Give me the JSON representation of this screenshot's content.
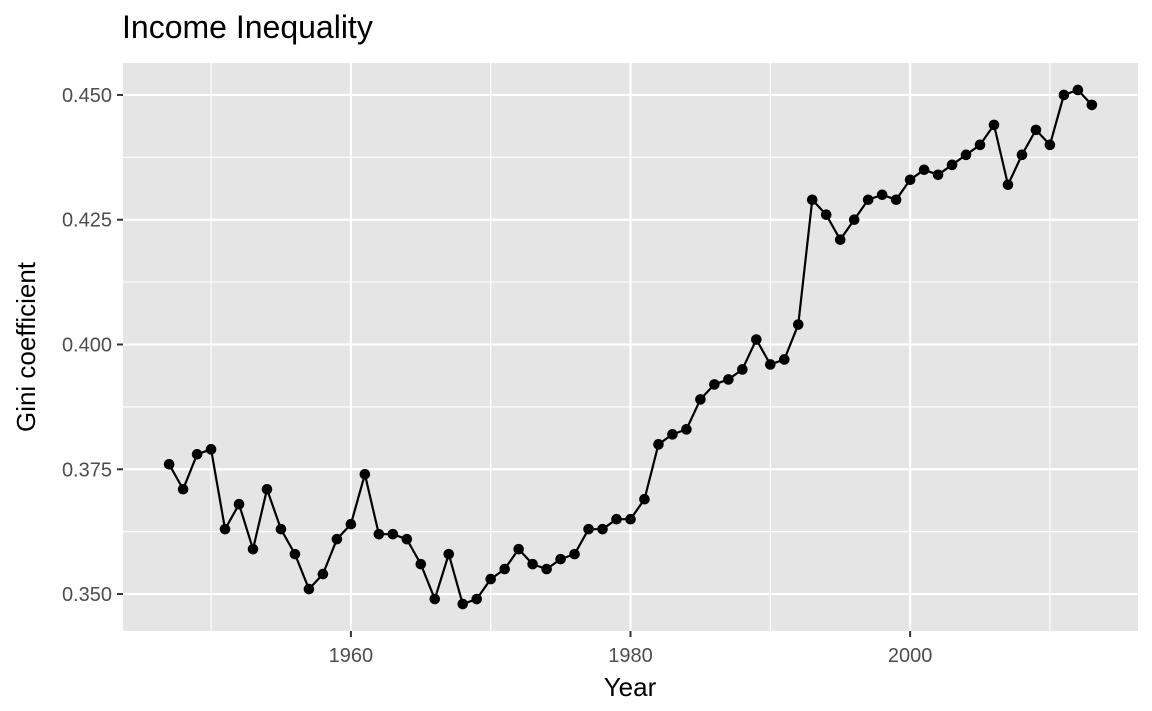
{
  "chart_data": {
    "type": "line",
    "title": "Income Inequality",
    "xlabel": "Year",
    "ylabel": "Gini coefficient",
    "xlim": [
      1943.7,
      2016.3
    ],
    "ylim": [
      0.3426,
      0.4564
    ],
    "x_ticks": [
      1960,
      1980,
      2000
    ],
    "x_tick_labels": [
      "1960",
      "1980",
      "2000"
    ],
    "x_minor_ticks": [
      1950,
      1970,
      1990,
      2010
    ],
    "y_ticks": [
      0.35,
      0.375,
      0.4,
      0.425,
      0.45
    ],
    "y_tick_labels": [
      "0.350",
      "0.375",
      "0.400",
      "0.425",
      "0.450"
    ],
    "y_minor_ticks": [
      0.3625,
      0.3875,
      0.4125,
      0.4375
    ],
    "grid": true,
    "legend": "none",
    "colors": {
      "panel": "#e5e5e5",
      "grid": "#ffffff",
      "line": "#000000",
      "point": "#000000"
    },
    "series": [
      {
        "x": [
          1947,
          1948,
          1949,
          1950,
          1951,
          1952,
          1953,
          1954,
          1955,
          1956,
          1957,
          1958,
          1959,
          1960,
          1961,
          1962,
          1963,
          1964,
          1965,
          1966,
          1967,
          1968,
          1969,
          1970,
          1971,
          1972,
          1973,
          1974,
          1975,
          1976,
          1977,
          1978,
          1979,
          1980,
          1981,
          1982,
          1983,
          1984,
          1985,
          1986,
          1987,
          1988,
          1989,
          1990,
          1991,
          1992,
          1993,
          1994,
          1995,
          1996,
          1997,
          1998,
          1999,
          2000,
          2001,
          2002,
          2003,
          2004,
          2005,
          2006,
          2007,
          2008,
          2009,
          2010,
          2011,
          2012,
          2013
        ],
        "y": [
          0.376,
          0.371,
          0.378,
          0.379,
          0.363,
          0.368,
          0.359,
          0.371,
          0.363,
          0.358,
          0.351,
          0.354,
          0.361,
          0.364,
          0.374,
          0.362,
          0.362,
          0.361,
          0.356,
          0.349,
          0.358,
          0.348,
          0.349,
          0.353,
          0.355,
          0.359,
          0.356,
          0.355,
          0.357,
          0.358,
          0.363,
          0.363,
          0.365,
          0.365,
          0.369,
          0.38,
          0.382,
          0.383,
          0.389,
          0.392,
          0.393,
          0.395,
          0.401,
          0.396,
          0.397,
          0.404,
          0.429,
          0.426,
          0.421,
          0.425,
          0.429,
          0.43,
          0.429,
          0.433,
          0.435,
          0.434,
          0.436,
          0.438,
          0.44,
          0.444,
          0.432,
          0.438,
          0.443,
          0.44,
          0.45,
          0.451,
          0.448
        ]
      }
    ]
  }
}
